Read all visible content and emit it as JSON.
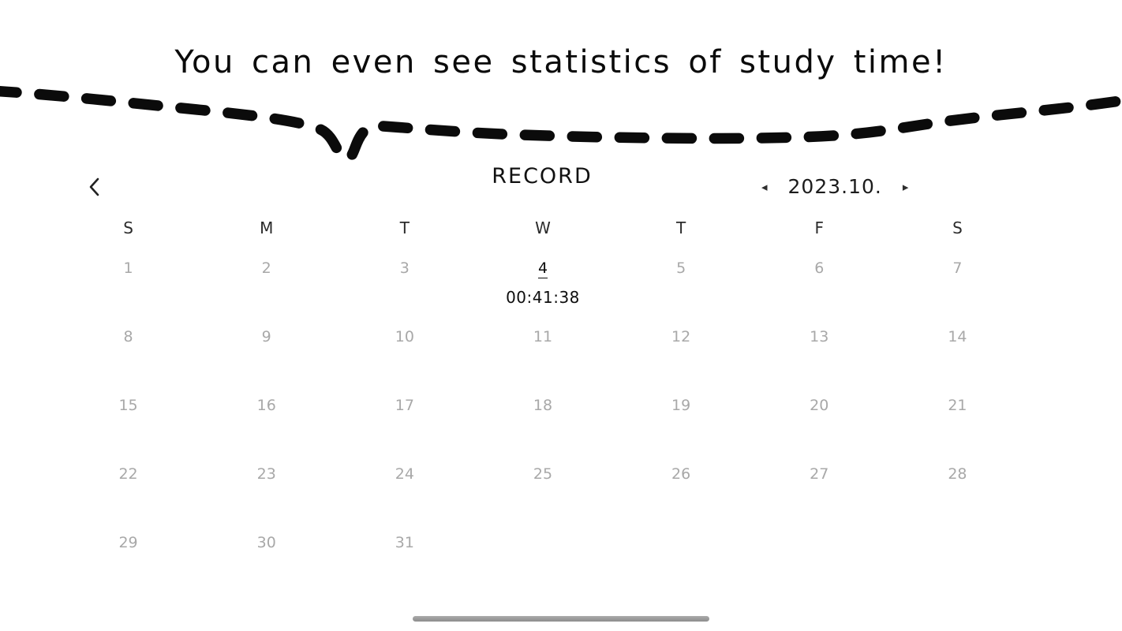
{
  "page": {
    "caption": "You can even see statistics of study time!"
  },
  "record": {
    "title": "RECORD",
    "month_label": "2023.10.",
    "icons": {
      "back": "‹",
      "prev": "◂",
      "next": "▸"
    }
  },
  "calendar": {
    "day_headers": [
      "S",
      "M",
      "T",
      "W",
      "T",
      "F",
      "S"
    ],
    "weeks": [
      [
        {
          "day": "1"
        },
        {
          "day": "2"
        },
        {
          "day": "3"
        },
        {
          "day": "4",
          "selected": true,
          "time": "00:41:38"
        },
        {
          "day": "5"
        },
        {
          "day": "6"
        },
        {
          "day": "7"
        }
      ],
      [
        {
          "day": "8"
        },
        {
          "day": "9"
        },
        {
          "day": "10"
        },
        {
          "day": "11"
        },
        {
          "day": "12"
        },
        {
          "day": "13"
        },
        {
          "day": "14"
        }
      ],
      [
        {
          "day": "15"
        },
        {
          "day": "16"
        },
        {
          "day": "17"
        },
        {
          "day": "18"
        },
        {
          "day": "19"
        },
        {
          "day": "20"
        },
        {
          "day": "21"
        }
      ],
      [
        {
          "day": "22"
        },
        {
          "day": "23"
        },
        {
          "day": "24"
        },
        {
          "day": "25"
        },
        {
          "day": "26"
        },
        {
          "day": "27"
        },
        {
          "day": "28"
        }
      ],
      [
        {
          "day": "29"
        },
        {
          "day": "30"
        },
        {
          "day": "31"
        },
        null,
        null,
        null,
        null
      ]
    ]
  },
  "colors": {
    "ink": "#0c0c0c",
    "day_number": "#a8a8a8",
    "header_text": "#2b2b2b",
    "home_bar": "#9a9a9a"
  }
}
